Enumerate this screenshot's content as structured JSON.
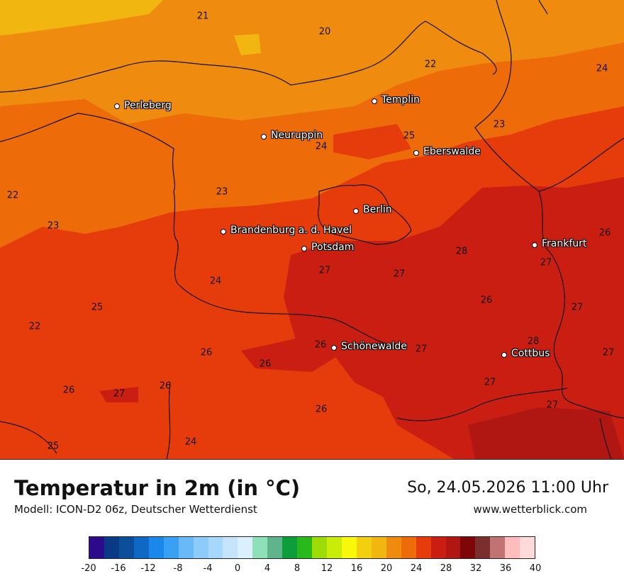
{
  "header": {
    "title": "Temperatur in 2m (in °C)",
    "model": "Modell: ICON-D2 06z, Deutscher Wetterdienst",
    "datetime": "So, 24.05.2026 11:00 Uhr",
    "website": "www.wetterblick.com"
  },
  "cities": [
    {
      "name": "Perleberg"
    },
    {
      "name": "Templin"
    },
    {
      "name": "Neuruppin"
    },
    {
      "name": "Eberswalde"
    },
    {
      "name": "Berlin"
    },
    {
      "name": "Brandenburg a. d. Havel"
    },
    {
      "name": "Potsdam"
    },
    {
      "name": "Frankfurt"
    },
    {
      "name": "Schönewalde"
    },
    {
      "name": "Cottbus"
    }
  ],
  "temperature_labels": [
    "21",
    "20",
    "22",
    "24",
    "23",
    "25",
    "24",
    "22",
    "23",
    "23",
    "28",
    "26",
    "27",
    "27",
    "24",
    "25",
    "27",
    "26",
    "22",
    "26",
    "27",
    "26",
    "26",
    "27",
    "28",
    "27",
    "26",
    "27",
    "27",
    "26",
    "27",
    "25",
    "24"
  ],
  "legend": {
    "colors": [
      "#2d0a8c",
      "#083a86",
      "#0b4f9a",
      "#0f69c4",
      "#1a88ea",
      "#3aa0f4",
      "#69b9f8",
      "#8ccbfa",
      "#a7d8fb",
      "#c5e4fc",
      "#dcefff",
      "#8ee0b8",
      "#60b48c",
      "#0d9d3c",
      "#28b91b",
      "#9ddc07",
      "#c9ec08",
      "#f7f80a",
      "#f3d00f",
      "#f2b611",
      "#ef8b0e",
      "#ee6b0a",
      "#e63c0c",
      "#ca1e12",
      "#b01713",
      "#7f0606",
      "#7b2e2e",
      "#c17272",
      "#ffbcbc",
      "#ffdada"
    ],
    "tick_labels": [
      "-20",
      "-16",
      "-12",
      "-8",
      "-4",
      "0",
      "4",
      "8",
      "12",
      "16",
      "20",
      "24",
      "28",
      "32",
      "36",
      "40"
    ]
  }
}
